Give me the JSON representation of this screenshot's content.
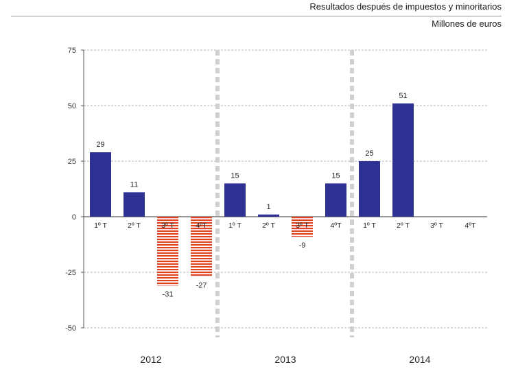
{
  "header": {
    "title": "Resultados después de impuestos y minoritarios",
    "unit": "Millones de euros"
  },
  "chart_data": {
    "type": "bar",
    "ylim": [
      -50,
      75
    ],
    "yticks": [
      75,
      50,
      25,
      0,
      -25,
      -50
    ],
    "grid": true,
    "colors": {
      "positive": "#2e3192",
      "negative": "#e0401e"
    },
    "groups": [
      {
        "year": "2012",
        "quarters": [
          {
            "label": "1º T",
            "value": 29
          },
          {
            "label": "2º T",
            "value": 11
          },
          {
            "label": "3º T",
            "value": -31
          },
          {
            "label": "4ºT",
            "value": -27
          }
        ]
      },
      {
        "year": "2013",
        "quarters": [
          {
            "label": "1º T",
            "value": 15
          },
          {
            "label": "2º T",
            "value": 1
          },
          {
            "label": "3º T",
            "value": -9
          },
          {
            "label": "4ºT",
            "value": 15
          }
        ]
      },
      {
        "year": "2014",
        "quarters": [
          {
            "label": "1º T",
            "value": 25
          },
          {
            "label": "2º T",
            "value": 51
          },
          {
            "label": "3º T",
            "value": null
          },
          {
            "label": "4ºT",
            "value": null
          }
        ]
      }
    ]
  }
}
